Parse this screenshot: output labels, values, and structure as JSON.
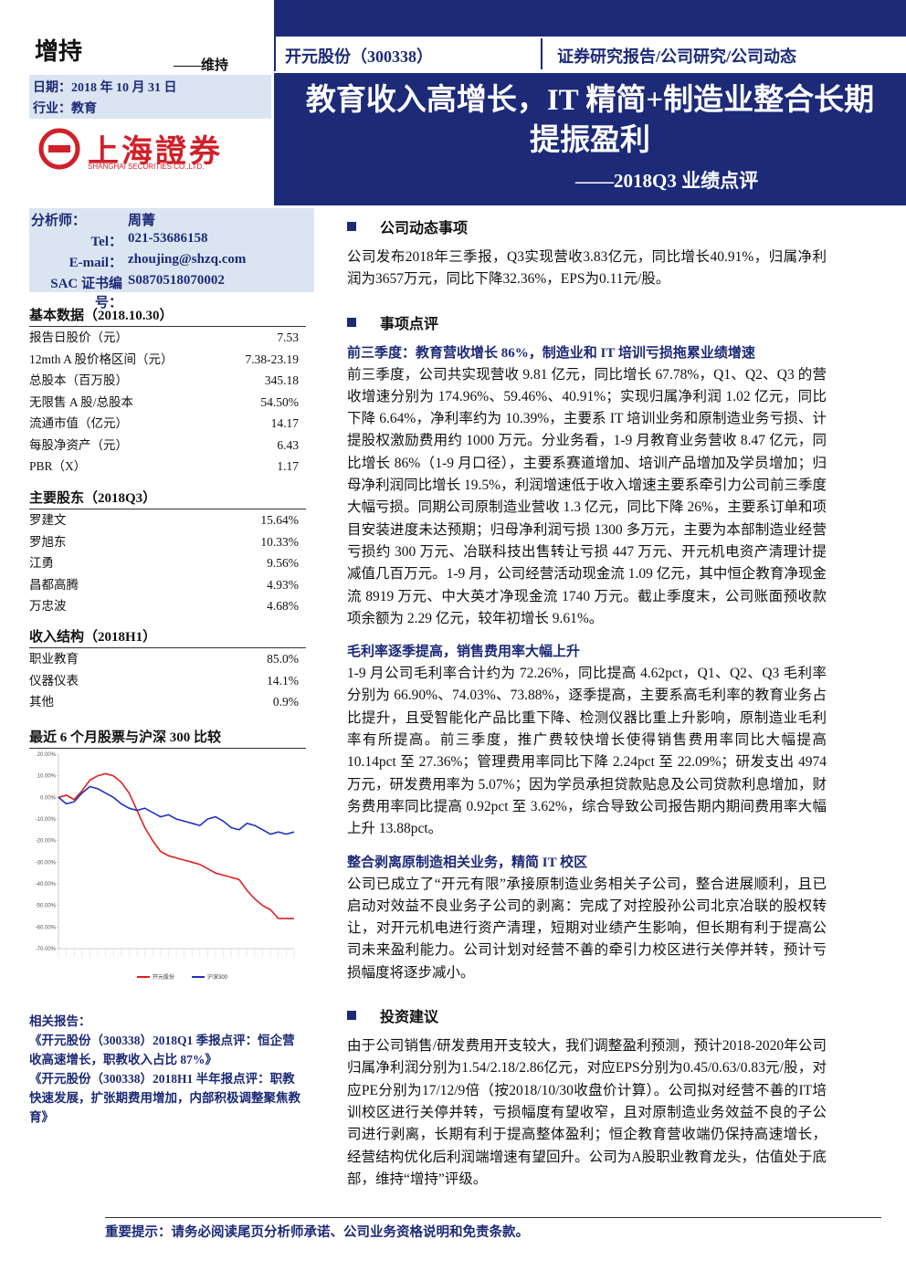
{
  "header": {
    "rating": "增持",
    "rating_change": "——维持",
    "company": "开元股份（300338）",
    "report_type": "证券研究报告/公司研究/公司动态",
    "date": "日期：2018 年 10 月 31 日",
    "industry": "行业：教育",
    "logo_text": "上海證券",
    "logo_sub": "SHANGHAI SECURITIES CO.,LTD.",
    "title_lines": [
      "教育收入高增长，IT 精简+制造业整合长期",
      "提振盈利"
    ],
    "subtitle": "——2018Q3 业绩点评"
  },
  "analyst": [
    [
      "分析师：",
      "周菁"
    ],
    [
      "Tel：",
      "021-53686158"
    ],
    [
      "E-mail：",
      "zhoujing@shzq.com"
    ],
    [
      "SAC 证书编号：",
      "S0870518070002"
    ]
  ],
  "basic_data": {
    "title": "基本数据（2018.10.30）",
    "rows": [
      [
        "报告日股价（元）",
        "7.53"
      ],
      [
        "12mth A 股价格区间（元）",
        "7.38-23.19"
      ],
      [
        "总股本（百万股）",
        "345.18"
      ],
      [
        "无限售 A 股/总股本",
        "54.50%"
      ],
      [
        "流通市值（亿元）",
        "14.17"
      ],
      [
        "每股净资产（元）",
        "6.43"
      ],
      [
        "PBR（X）",
        "1.17"
      ]
    ]
  },
  "shareholders": {
    "title": "主要股东（2018Q3）",
    "rows": [
      [
        "罗建文",
        "15.64%"
      ],
      [
        "罗旭东",
        "10.33%"
      ],
      [
        "江勇",
        "9.56%"
      ],
      [
        "昌都高腾",
        "4.93%"
      ],
      [
        "万忠波",
        "4.68%"
      ]
    ]
  },
  "revenue_structure": {
    "title": "收入结构（2018H1）",
    "rows": [
      [
        "职业教育",
        "85.0%"
      ],
      [
        "仪器仪表",
        "14.1%"
      ],
      [
        "其他",
        "0.9%"
      ]
    ]
  },
  "chart_title": "最近 6 个月股票与沪深 300 比较",
  "chart_data": {
    "type": "line",
    "categories": [
      null,
      null,
      null,
      null,
      null,
      null,
      null,
      null,
      null,
      null,
      null,
      null,
      null,
      null,
      null,
      null,
      null,
      null,
      null,
      null,
      null,
      null,
      null,
      null,
      null,
      null,
      null,
      null,
      null,
      null,
      null
    ],
    "series": [
      {
        "name": "开元股份",
        "color": "#e02020",
        "values": [
          0,
          1,
          -1,
          3,
          8,
          10,
          11,
          10,
          7,
          2,
          -6,
          -14,
          -20,
          -25,
          -27,
          -28,
          -29,
          -30,
          -31,
          -33,
          -35,
          -36,
          -37,
          -38,
          -43,
          -47,
          -50,
          -52,
          -56,
          -56,
          -56
        ]
      },
      {
        "name": "沪深300",
        "color": "#2030c0",
        "values": [
          0,
          -3,
          -2,
          2,
          5,
          4,
          2,
          0,
          -3,
          -5,
          -6,
          -5,
          -7,
          -9,
          -8,
          -10,
          -11,
          -12,
          -13,
          -10,
          -9,
          -11,
          -14,
          -15,
          -12,
          -13,
          -15,
          -17,
          -16,
          -17,
          -16
        ]
      }
    ],
    "ylim": [
      -70,
      20
    ],
    "yticks": [
      {
        "value": 20,
        "label": "20.00%"
      },
      {
        "value": 10,
        "label": "10.00%"
      },
      {
        "value": 0,
        "label": "0.00%"
      },
      {
        "value": -10,
        "label": "-10.00%"
      },
      {
        "value": -20,
        "label": "-20.00%"
      },
      {
        "value": -30,
        "label": "-30.00%"
      },
      {
        "value": -40,
        "label": "-40.00%"
      },
      {
        "value": -50,
        "label": "-50.00%"
      },
      {
        "value": -60,
        "label": "-60.00%"
      },
      {
        "value": -70,
        "label": "-70.00%"
      }
    ]
  },
  "related": {
    "title": "相关报告：",
    "items": [
      "《开元股份（300338）2018Q1 季报点评：恒企营收高速增长，职教收入占比 87%》",
      "《开元股份（300338）2018H1 半年报点评：职教快速发展，扩张期费用增加，内部积极调整聚焦教育》"
    ]
  },
  "sections": [
    {
      "heading": "公司动态事项",
      "blocks": [
        {
          "text": "公司发布2018年三季报，Q3实现营收3.83亿元，同比增长40.91%，归属净利润为3657万元，同比下降32.36%，EPS为0.11元/股。"
        }
      ]
    },
    {
      "heading": "事项点评",
      "blocks": [
        {
          "subheading": "前三季度：教育营收增长 86%，制造业和 IT 培训亏损拖累业绩增速",
          "text": "前三季度，公司共实现营收 9.81 亿元，同比增长 67.78%，Q1、Q2、Q3 的营收增速分别为 174.96%、59.46%、40.91%；实现归属净利润 1.02 亿元，同比下降 6.64%，净利率约为 10.39%，主要系 IT 培训业务和原制造业务亏损、计提股权激励费用约 1000 万元。分业务看，1-9 月教育业务营收 8.47 亿元，同比增长 86%（1-9 月口径），主要系赛道增加、培训产品增加及学员增加；归母净利润同比增长 19.5%，利润增速低于收入增速主要系牵引力公司前三季度大幅亏损。同期公司原制造业营收 1.3 亿元，同比下降 26%，主要系订单和项目安装进度未达预期；归母净利润亏损 1300 多万元，主要为本部制造业经营亏损约 300 万元、冶联科技出售转让亏损 447 万元、开元机电资产清理计提减值几百万元。1-9 月，公司经营活动现金流 1.09 亿元，其中恒企教育净现金流 8919 万元、中大英才净现金流 1740 万元。截止季度末，公司账面预收款项余额为 2.29 亿元，较年初增长 9.61%。"
        },
        {
          "subheading": "毛利率逐季提高，销售费用率大幅上升",
          "text": "1-9 月公司毛利率合计约为 72.26%，同比提高 4.62pct，Q1、Q2、Q3 毛利率分别为 66.90%、74.03%、73.88%，逐季提高，主要系高毛利率的教育业务占比提升，且受智能化产品比重下降、检测仪器比重上升影响，原制造业毛利率有所提高。前三季度，推广费较快增长使得销售费用率同比大幅提高 10.14pct 至 27.36%；管理费用率同比下降 2.24pct 至 22.09%；研发支出 4974 万元，研发费用率为 5.07%；因为学员承担贷款贴息及公司贷款利息增加，财务费用率同比提高 0.92pct 至 3.62%，综合导致公司报告期内期间费用率大幅上升 13.88pct。"
        },
        {
          "subheading": "整合剥离原制造相关业务，精简 IT 校区",
          "text": "公司已成立了“开元有限”承接原制造业务相关子公司，整合进展顺利，且已启动对效益不良业务子公司的剥离：完成了对控股孙公司北京冶联的股权转让，对开元机电进行资产清理，短期对业绩产生影响，但长期有利于提高公司未来盈利能力。公司计划对经营不善的牵引力校区进行关停并转，预计亏损幅度将逐步减小。"
        }
      ]
    },
    {
      "heading": "投资建议",
      "blocks": [
        {
          "text": "由于公司销售/研发费用开支较大，我们调整盈利预测，预计2018-2020年公司归属净利润分别为1.54/2.18/2.86亿元，对应EPS分别为0.45/0.63/0.83元/股，对应PE分别为17/12/9倍（按2018/10/30收盘价计算）。公司拟对经营不善的IT培训校区进行关停并转，亏损幅度有望收窄，且对原制造业务效益不良的子公司进行剥离，长期有利于提高整体盈利；恒企教育营收端仍保持高速增长，经营结构优化后利润端增速有望回升。公司为A股职业教育龙头，估值处于底部，维持“增持”评级。"
        }
      ]
    }
  ],
  "footer": "重要提示：请务必阅读尾页分析师承诺、公司业务资格说明和免责条款。"
}
